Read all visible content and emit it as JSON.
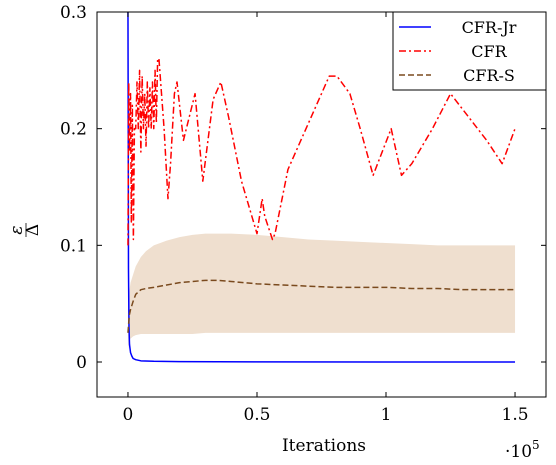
{
  "chart_data": {
    "type": "line",
    "xlabel": "Iterations",
    "x_multiplier": "·10",
    "x_multiplier_exp": "5",
    "ylabel_num": "ε",
    "ylabel_den": "Δ",
    "xlim": [
      -0.12,
      1.62
    ],
    "ylim": [
      -0.03,
      0.3
    ],
    "xticks": [
      0,
      0.5,
      1,
      1.5
    ],
    "xtick_labels": [
      "0",
      "0.5",
      "1",
      "1.5"
    ],
    "yticks": [
      0,
      0.1,
      0.2,
      0.3
    ],
    "ytick_labels": [
      "0",
      "0.1",
      "0.2",
      "0.3"
    ],
    "legend_position": "top-right",
    "series": [
      {
        "name": "CFR-Jr",
        "color": "#0000ff",
        "style": "solid",
        "x": [
          0,
          0.001,
          0.002,
          0.004,
          0.006,
          0.01,
          0.015,
          0.02,
          0.03,
          0.05,
          0.1,
          0.2,
          0.5,
          1.0,
          1.5
        ],
        "y": [
          0.3,
          0.2,
          0.08,
          0.03,
          0.015,
          0.008,
          0.005,
          0.003,
          0.002,
          0.001,
          0.0006,
          0.0003,
          0.0001,
          0.0,
          0.0
        ]
      },
      {
        "name": "CFR",
        "color": "#ff0000",
        "style": "dashdot",
        "x": [
          0,
          0.003,
          0.006,
          0.01,
          0.013,
          0.017,
          0.021,
          0.025,
          0.03,
          0.035,
          0.04,
          0.045,
          0.05,
          0.055,
          0.06,
          0.065,
          0.07,
          0.075,
          0.08,
          0.085,
          0.09,
          0.095,
          0.1,
          0.105,
          0.11,
          0.115,
          0.12,
          0.14,
          0.155,
          0.165,
          0.18,
          0.19,
          0.215,
          0.26,
          0.29,
          0.33,
          0.36,
          0.39,
          0.44,
          0.5,
          0.52,
          0.53,
          0.56,
          0.57,
          0.62,
          0.7,
          0.78,
          0.81,
          0.86,
          0.9,
          0.95,
          1.02,
          1.06,
          1.1,
          1.18,
          1.25,
          1.32,
          1.39,
          1.45,
          1.5
        ],
        "y": [
          0.1,
          0.24,
          0.18,
          0.23,
          0.12,
          0.22,
          0.105,
          0.2,
          0.2,
          0.24,
          0.2,
          0.25,
          0.18,
          0.245,
          0.2,
          0.23,
          0.185,
          0.24,
          0.2,
          0.235,
          0.2,
          0.24,
          0.2,
          0.25,
          0.205,
          0.26,
          0.26,
          0.2,
          0.14,
          0.17,
          0.23,
          0.24,
          0.19,
          0.23,
          0.155,
          0.225,
          0.24,
          0.21,
          0.155,
          0.11,
          0.14,
          0.125,
          0.105,
          0.11,
          0.165,
          0.205,
          0.245,
          0.245,
          0.23,
          0.2,
          0.16,
          0.2,
          0.16,
          0.17,
          0.2,
          0.23,
          0.21,
          0.19,
          0.17,
          0.2
        ]
      },
      {
        "name": "CFR-S",
        "color": "#7a4a1e",
        "style": "dashed",
        "x": [
          0,
          0.005,
          0.01,
          0.02,
          0.03,
          0.05,
          0.07,
          0.1,
          0.15,
          0.2,
          0.25,
          0.3,
          0.35,
          0.4,
          0.5,
          0.6,
          0.7,
          0.8,
          0.9,
          1.0,
          1.1,
          1.2,
          1.3,
          1.4,
          1.5
        ],
        "y": [
          0.025,
          0.04,
          0.045,
          0.052,
          0.058,
          0.062,
          0.063,
          0.064,
          0.066,
          0.068,
          0.069,
          0.07,
          0.07,
          0.069,
          0.067,
          0.066,
          0.065,
          0.064,
          0.064,
          0.064,
          0.063,
          0.063,
          0.062,
          0.062,
          0.062
        ],
        "band_lower": [
          0.01,
          0.02,
          0.02,
          0.022,
          0.023,
          0.024,
          0.024,
          0.024,
          0.024,
          0.024,
          0.024,
          0.025,
          0.025,
          0.025,
          0.025,
          0.025,
          0.025,
          0.025,
          0.025,
          0.025,
          0.025,
          0.025,
          0.025,
          0.025,
          0.025
        ],
        "band_upper": [
          0.045,
          0.06,
          0.068,
          0.075,
          0.082,
          0.09,
          0.095,
          0.1,
          0.104,
          0.107,
          0.109,
          0.11,
          0.11,
          0.11,
          0.109,
          0.107,
          0.105,
          0.104,
          0.103,
          0.102,
          0.101,
          0.1,
          0.1,
          0.1,
          0.1
        ],
        "band_color": "#efdfcf"
      }
    ]
  }
}
